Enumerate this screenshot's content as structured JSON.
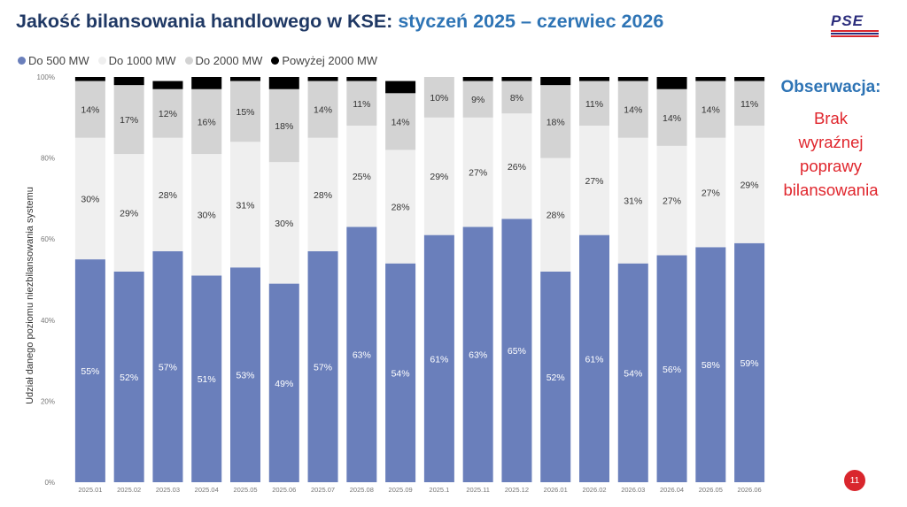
{
  "title": {
    "main": "Jakość bilansowania handlowego w KSE:",
    "accent": "styczeń 2025 – czerwiec 2026"
  },
  "logo": {
    "text": "PSE"
  },
  "observation": {
    "title": "Obserwacja:",
    "text": [
      "Brak",
      "wyraźnej",
      "poprawy",
      "bilansowania"
    ]
  },
  "page_number": "11",
  "colors": {
    "do500": "#6a7fbb",
    "do1000": "#efefef",
    "do2000": "#d3d3d3",
    "powyzej2000": "#000000",
    "title": "#1f3864",
    "accent": "#2e74b5",
    "observation_text": "#e0262d"
  },
  "chart_data": {
    "type": "bar",
    "stacked": true,
    "percent_stacked": true,
    "categories": [
      "2025.01",
      "2025.02",
      "2025.03",
      "2025.04",
      "2025.05",
      "2025.06",
      "2025.07",
      "2025.08",
      "2025.09",
      "2025.1",
      "2025.11",
      "2025.12",
      "2026.01",
      "2026.02",
      "2026.03",
      "2026.04",
      "2026.05",
      "2026.06"
    ],
    "series": [
      {
        "name": "Do 500 MW",
        "color": "#6a7fbb",
        "label_color": "#ffffff",
        "values": [
          55,
          52,
          57,
          51,
          53,
          49,
          57,
          63,
          54,
          61,
          63,
          65,
          52,
          61,
          54,
          56,
          58,
          59
        ],
        "labels": [
          "55%",
          "52%",
          "57%",
          "51%",
          "53%",
          "49%",
          "57%",
          "63%",
          "54%",
          "61%",
          "63%",
          "65%",
          "52%",
          "61%",
          "54%",
          "56%",
          "58%",
          "59%"
        ]
      },
      {
        "name": "Do 1000 MW",
        "color": "#efefef",
        "label_color": "#333333",
        "values": [
          30,
          29,
          28,
          30,
          31,
          30,
          28,
          25,
          28,
          29,
          27,
          26,
          28,
          27,
          31,
          27,
          27,
          29
        ],
        "labels": [
          "30%",
          "29%",
          "28%",
          "30%",
          "31%",
          "30%",
          "28%",
          "25%",
          "28%",
          "29%",
          "27%",
          "26%",
          "28%",
          "27%",
          "31%",
          "27%",
          "27%",
          "29%"
        ]
      },
      {
        "name": "Do 2000 MW",
        "color": "#d3d3d3",
        "label_color": "#333333",
        "values": [
          14,
          17,
          12,
          16,
          15,
          18,
          14,
          11,
          14,
          10,
          9,
          8,
          18,
          11,
          14,
          14,
          14,
          11
        ],
        "labels": [
          "14%",
          "17%",
          "12%",
          "16%",
          "15%",
          "18%",
          "14%",
          "11%",
          "14%",
          "10%",
          "9%",
          "8%",
          "18%",
          "11%",
          "14%",
          "14%",
          "14%",
          "11%"
        ]
      },
      {
        "name": "Powyżej 2000 MW",
        "color": "#000000",
        "label_color": "#ffffff",
        "values": [
          1,
          2,
          2,
          3,
          1,
          3,
          1,
          1,
          3,
          0,
          1,
          1,
          2,
          1,
          1,
          3,
          1,
          1
        ],
        "labels": [
          "",
          "",
          "",
          "",
          "",
          "",
          "",
          "",
          "",
          "",
          "",
          "",
          "",
          "",
          "",
          "",
          "",
          ""
        ]
      }
    ],
    "ylabel": "Udział danego poziomu niezbilansowania systemu",
    "xlabel": "",
    "ylim": [
      0,
      100
    ],
    "yticks": [
      0,
      20,
      40,
      60,
      80,
      100
    ],
    "ytick_labels": [
      "0%",
      "20%",
      "40%",
      "60%",
      "80%",
      "100%"
    ],
    "legend_position": "top-left",
    "grid": false
  }
}
